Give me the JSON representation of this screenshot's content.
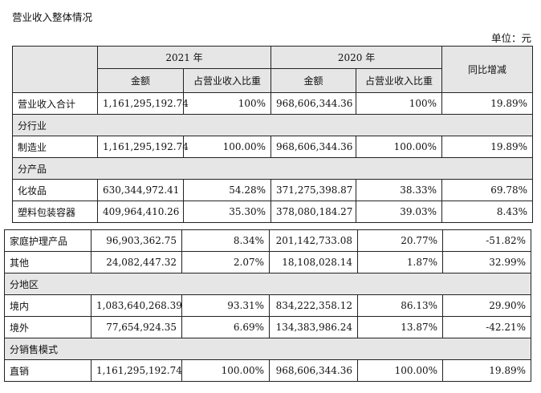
{
  "title": "营业收入整体情况",
  "unit_label": "单位：元",
  "header": {
    "year_2021": "2021 年",
    "year_2020": "2020 年",
    "yoy": "同比增减",
    "amount": "金额",
    "share": "占营业收入比重"
  },
  "rows": {
    "total": {
      "label": "营业收入合计",
      "amt21": "1,161,295,192.74",
      "pct21": "100%",
      "amt20": "968,606,344.36",
      "pct20": "100%",
      "yoy": "19.89%"
    },
    "sec_industry": "分行业",
    "manufacturing": {
      "label": "制造业",
      "amt21": "1,161,295,192.74",
      "pct21": "100.00%",
      "amt20": "968,606,344.36",
      "pct20": "100.00%",
      "yoy": "19.89%"
    },
    "sec_product": "分产品",
    "cosmetics": {
      "label": "化妆品",
      "amt21": "630,344,972.41",
      "pct21": "54.28%",
      "amt20": "371,275,398.87",
      "pct20": "38.33%",
      "yoy": "69.78%"
    },
    "plastic_packaging": {
      "label": "塑料包装容器",
      "amt21": "409,964,410.26",
      "pct21": "35.30%",
      "amt20": "378,080,184.27",
      "pct20": "39.03%",
      "yoy": "8.43%"
    },
    "home_care": {
      "label": "家庭护理产品",
      "amt21": "96,903,362.75",
      "pct21": "8.34%",
      "amt20": "201,142,733.08",
      "pct20": "20.77%",
      "yoy": "-51.82%"
    },
    "other": {
      "label": "其他",
      "amt21": "24,082,447.32",
      "pct21": "2.07%",
      "amt20": "18,108,028.14",
      "pct20": "1.87%",
      "yoy": "32.99%"
    },
    "sec_region": "分地区",
    "domestic": {
      "label": "境内",
      "amt21": "1,083,640,268.39",
      "pct21": "93.31%",
      "amt20": "834,222,358.12",
      "pct20": "86.13%",
      "yoy": "29.90%"
    },
    "overseas": {
      "label": "境外",
      "amt21": "77,654,924.35",
      "pct21": "6.69%",
      "amt20": "134,383,986.24",
      "pct20": "13.87%",
      "yoy": "-42.21%"
    },
    "sec_sales_model": "分销售模式",
    "direct": {
      "label": "直销",
      "amt21": "1,161,295,192.74",
      "pct21": "100.00%",
      "amt20": "968,606,344.36",
      "pct20": "100.00%",
      "yoy": "19.89%"
    }
  }
}
